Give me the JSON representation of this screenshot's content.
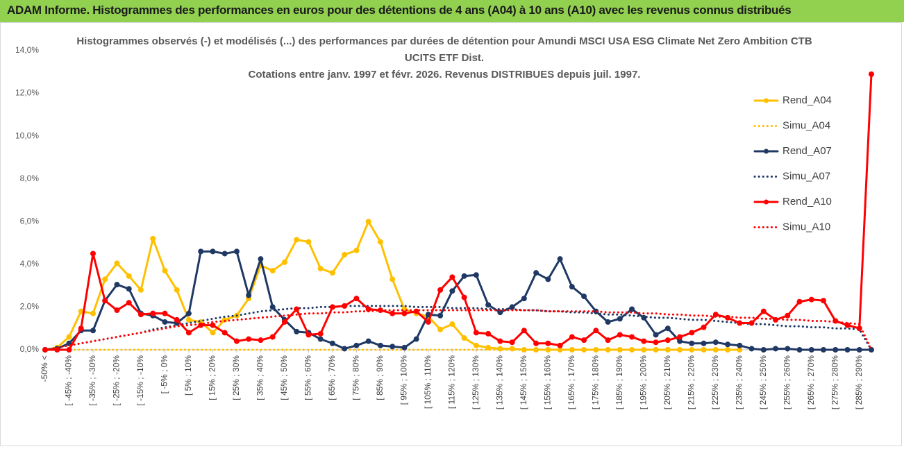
{
  "header": "ADAM Informe. Histogrammes des performances en euros pour des détentions de 4 ans (A04) à 10 ans (A10) avec les revenus connus distribués",
  "chart_data": {
    "type": "line",
    "title": [
      "Histogrammes observés (-) et modélisés (...) des performances par durées de détention pour Amundi MSCI USA ESG Climate Net Zero Ambition CTB",
      "UCITS ETF Dist."
    ],
    "subtitle": "Cotations entre janv. 1997 et févr. 2026. Revenus DISTRIBUES depuis juil. 1997.",
    "categories": [
      "-50% <",
      null,
      "[ -45% ; -40%",
      null,
      "[ -35% ; -30%",
      null,
      "[ -25% ; -20%",
      null,
      "[ -15% ; -10%",
      null,
      "[ -5% ; 0%",
      null,
      "[ 5% ; 10%",
      null,
      "[ 15% ; 20%",
      null,
      "[ 25% ; 30%",
      null,
      "[ 35% ; 40%",
      null,
      "[ 45% ; 50%",
      null,
      "[ 55% ; 60%",
      null,
      "[ 65% ; 70%",
      null,
      "[ 75% ; 80%",
      null,
      "[ 85% ; 90%",
      null,
      "[ 95% ; 100%",
      null,
      "[ 105% ; 110%",
      null,
      "[ 115% ; 120%",
      null,
      "[ 125% ; 130%",
      null,
      "[ 135% ; 140%",
      null,
      "[ 145% ; 150%",
      null,
      "[ 155% ; 160%",
      null,
      "[ 165% ; 170%",
      null,
      "[ 175% ; 180%",
      null,
      "[ 185% ; 190%",
      null,
      "[ 195% ; 200%",
      null,
      "[ 205% ; 210%",
      null,
      "[ 215% ; 220%",
      null,
      "[ 225% ; 230%",
      null,
      "[ 235% ; 240%",
      null,
      "[ 245% ; 250%",
      null,
      "[ 255% ; 260%",
      null,
      "[ 265% ; 270%",
      null,
      "[ 275% ; 280%",
      null,
      "[ 285% ; 290%",
      null
    ],
    "ylim": [
      0,
      14
    ],
    "yticks": [
      {
        "value": 0,
        "label": "0,0%"
      },
      {
        "value": 2,
        "label": "2,0%"
      },
      {
        "value": 4,
        "label": "4,0%"
      },
      {
        "value": 6,
        "label": "6,0%"
      },
      {
        "value": 8,
        "label": "8,0%"
      },
      {
        "value": 10,
        "label": "10,0%"
      },
      {
        "value": 12,
        "label": "12,0%"
      },
      {
        "value": 14,
        "label": "14,0%"
      }
    ],
    "grid": false,
    "legend": "right",
    "series": [
      {
        "name": "Rend_A04",
        "color": "#ffc000",
        "style": "solid",
        "markers": true,
        "values": [
          0,
          0.1,
          0.6,
          1.8,
          1.7,
          3.3,
          4.05,
          3.45,
          2.8,
          5.2,
          3.7,
          2.8,
          1.4,
          1.3,
          0.8,
          1.4,
          1.6,
          2.4,
          3.95,
          3.7,
          4.1,
          5.15,
          5.05,
          3.8,
          3.6,
          4.45,
          4.65,
          6.0,
          5.05,
          3.3,
          1.9,
          1.7,
          1.55,
          0.95,
          1.2,
          0.55,
          0.2,
          0.1,
          0.05,
          0.05,
          0,
          0,
          0,
          0,
          0,
          0,
          0,
          0,
          0,
          0,
          0,
          0,
          0,
          0,
          0,
          0,
          0,
          0,
          0,
          null,
          null,
          null,
          null,
          null,
          null,
          null,
          null,
          null,
          null,
          null
        ]
      },
      {
        "name": "Simu_A04",
        "color": "#ffc000",
        "style": "dotted",
        "markers": false,
        "values": [
          0,
          0,
          0,
          0,
          0,
          0,
          0,
          0,
          0,
          0,
          0,
          0,
          0,
          0,
          0,
          0,
          0,
          0,
          0,
          0,
          0,
          0,
          0,
          0,
          0,
          0,
          0,
          0,
          0,
          0,
          0,
          0,
          0,
          0,
          0,
          0,
          0,
          0,
          0,
          0,
          0,
          0,
          0,
          0,
          0,
          0,
          0,
          0,
          0,
          0,
          0,
          0,
          0,
          0,
          0,
          0,
          0,
          0,
          0,
          null,
          null,
          null,
          null,
          null,
          null,
          null,
          null,
          null,
          null,
          null
        ]
      },
      {
        "name": "Rend_A07",
        "color": "#1f3864",
        "style": "solid",
        "markers": true,
        "values": [
          0,
          0.05,
          0.3,
          0.9,
          0.9,
          2.3,
          3.05,
          2.85,
          1.7,
          1.6,
          1.3,
          1.25,
          1.7,
          4.6,
          4.6,
          4.5,
          4.6,
          2.55,
          4.25,
          2.0,
          1.4,
          0.85,
          0.8,
          0.5,
          0.3,
          0.05,
          0.2,
          0.4,
          0.2,
          0.15,
          0.1,
          0.5,
          1.65,
          1.6,
          2.75,
          3.45,
          3.5,
          2.1,
          1.75,
          2.0,
          2.4,
          3.6,
          3.3,
          4.25,
          2.95,
          2.5,
          1.8,
          1.3,
          1.45,
          1.9,
          1.5,
          0.7,
          1.0,
          0.4,
          0.3,
          0.3,
          0.35,
          0.25,
          0.2,
          0.05,
          0,
          0.05,
          0.05,
          0,
          0,
          0,
          0,
          0,
          0,
          0
        ]
      },
      {
        "name": "Simu_A07",
        "color": "#1f3864",
        "style": "dotted",
        "markers": false,
        "values": [
          0,
          0.1,
          0.2,
          0.3,
          0.4,
          0.5,
          0.6,
          0.7,
          0.8,
          0.95,
          1.05,
          1.15,
          1.25,
          1.35,
          1.45,
          1.55,
          1.6,
          1.7,
          1.8,
          1.85,
          1.9,
          1.95,
          1.95,
          2.0,
          2.0,
          2.05,
          2.05,
          2.05,
          2.05,
          2.05,
          2.05,
          2.0,
          2.0,
          2.0,
          1.95,
          1.95,
          1.95,
          1.9,
          1.9,
          1.9,
          1.85,
          1.85,
          1.8,
          1.8,
          1.75,
          1.75,
          1.7,
          1.65,
          1.65,
          1.6,
          1.55,
          1.5,
          1.5,
          1.45,
          1.4,
          1.4,
          1.35,
          1.3,
          1.25,
          1.2,
          1.2,
          1.15,
          1.1,
          1.1,
          1.05,
          1.05,
          1.0,
          1.0,
          0.95,
          0
        ]
      },
      {
        "name": "Rend_A10",
        "color": "#ff0000",
        "style": "solid",
        "markers": true,
        "values": [
          0,
          0,
          0,
          1.0,
          4.5,
          2.3,
          1.85,
          2.2,
          1.65,
          1.7,
          1.7,
          1.4,
          0.8,
          1.15,
          1.15,
          0.8,
          0.4,
          0.5,
          0.45,
          0.6,
          1.3,
          1.9,
          0.7,
          0.75,
          2.0,
          2.05,
          2.4,
          1.9,
          1.85,
          1.7,
          1.7,
          1.8,
          1.3,
          2.8,
          3.4,
          2.45,
          0.8,
          0.75,
          0.4,
          0.35,
          0.9,
          0.3,
          0.3,
          0.2,
          0.6,
          0.45,
          0.9,
          0.45,
          0.7,
          0.6,
          0.4,
          0.35,
          0.45,
          0.6,
          0.8,
          1.05,
          1.65,
          1.5,
          1.25,
          1.25,
          1.8,
          1.4,
          1.6,
          2.25,
          2.35,
          2.3,
          1.35,
          1.15,
          1.0,
          12.9
        ]
      },
      {
        "name": "Simu_A10",
        "color": "#ff0000",
        "style": "dotted",
        "markers": false,
        "values": [
          0,
          0.1,
          0.2,
          0.3,
          0.4,
          0.5,
          0.6,
          0.7,
          0.8,
          0.9,
          1.0,
          1.1,
          1.15,
          1.2,
          1.3,
          1.35,
          1.4,
          1.45,
          1.5,
          1.55,
          1.6,
          1.65,
          1.7,
          1.7,
          1.75,
          1.75,
          1.8,
          1.8,
          1.85,
          1.85,
          1.85,
          1.85,
          1.85,
          1.85,
          1.85,
          1.85,
          1.85,
          1.85,
          1.85,
          1.85,
          1.85,
          1.85,
          1.8,
          1.8,
          1.8,
          1.8,
          1.8,
          1.75,
          1.75,
          1.75,
          1.7,
          1.7,
          1.65,
          1.65,
          1.6,
          1.6,
          1.55,
          1.55,
          1.5,
          1.5,
          1.45,
          1.45,
          1.4,
          1.4,
          1.35,
          1.35,
          1.3,
          1.25,
          1.2,
          0
        ]
      }
    ]
  }
}
